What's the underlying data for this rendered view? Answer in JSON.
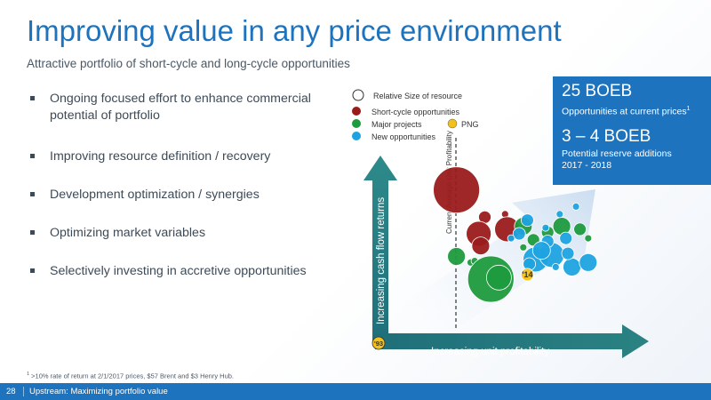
{
  "slide": {
    "title": "Improving value in any price environment",
    "subtitle": "Attractive portfolio of short-cycle and long-cycle opportunities",
    "bullets": [
      "Ongoing focused effort to enhance commercial potential of portfolio",
      "Improving resource definition / recovery",
      "Development optimization / synergies",
      "Optimizing market variables",
      "Selectively investing in accretive opportunities"
    ],
    "callout": {
      "value1": "25 BOEB",
      "label1": "Opportunities at current prices",
      "label1_sup": "1",
      "value2": "3 – 4 BOEB",
      "label2_line1": "Potential reserve additions",
      "label2_line2": "2017 - 2018"
    },
    "footnote_sup": "1",
    "footnote": " >10% rate of return at 2/1/2017 prices, $57 Brent and $3 Henry Hub.",
    "page_number": "28",
    "footer_text": "Upstream: Maximizing portfolio value"
  },
  "chart_data": {
    "type": "scatter",
    "xlabel": "Increasing unit profitability",
    "ylabel": "Increasing cash flow returns",
    "annotation_line": "Current Average Unit Profitability",
    "origin_label": "'93",
    "highlight_label": "'14",
    "legend": {
      "size_title": "Relative Size of resource",
      "items": [
        {
          "name": "Short-cycle opportunities",
          "color": "#9b1b1b"
        },
        {
          "name": "Major projects",
          "color": "#1e9b3e"
        },
        {
          "name": "New opportunities",
          "color": "#1ea3e0"
        },
        {
          "name": "PNG",
          "color": "#f3c21a"
        }
      ]
    },
    "series": [
      {
        "name": "Short-cycle opportunities",
        "color": "#9b1b1b",
        "points": [
          [
            0.27,
            0.89,
            5
          ],
          [
            0.41,
            0.71,
            2
          ],
          [
            0.51,
            0.73,
            1
          ],
          [
            0.38,
            0.6,
            4
          ],
          [
            0.39,
            0.52,
            3
          ],
          [
            0.52,
            0.63,
            4
          ]
        ]
      },
      {
        "name": "Major projects",
        "color": "#1e9b3e",
        "points": [
          [
            0.27,
            0.45,
            3
          ],
          [
            0.34,
            0.41,
            1
          ],
          [
            0.36,
            0.42,
            1
          ],
          [
            0.44,
            0.3,
            5
          ],
          [
            0.48,
            0.31,
            4
          ],
          [
            0.6,
            0.65,
            3
          ],
          [
            0.79,
            0.65,
            3
          ],
          [
            0.72,
            0.61,
            2
          ],
          [
            0.65,
            0.56,
            2
          ],
          [
            0.88,
            0.63,
            2
          ],
          [
            0.92,
            0.57,
            1
          ],
          [
            0.6,
            0.51,
            1
          ]
        ]
      },
      {
        "name": "New opportunities",
        "color": "#1ea3e0",
        "points": [
          [
            0.66,
            0.43,
            4
          ],
          [
            0.74,
            0.46,
            4
          ],
          [
            0.72,
            0.55,
            2
          ],
          [
            0.69,
            0.49,
            3
          ],
          [
            0.63,
            0.4,
            2
          ],
          [
            0.76,
            0.38,
            1
          ],
          [
            0.84,
            0.38,
            3
          ],
          [
            0.82,
            0.47,
            2
          ],
          [
            0.81,
            0.57,
            2
          ],
          [
            0.92,
            0.41,
            3
          ],
          [
            0.58,
            0.6,
            2
          ],
          [
            0.54,
            0.57,
            1
          ],
          [
            0.71,
            0.64,
            1
          ],
          [
            0.78,
            0.73,
            1
          ],
          [
            0.86,
            0.78,
            1
          ],
          [
            0.62,
            0.69,
            2
          ]
        ]
      },
      {
        "name": "PNG",
        "color": "#f3c21a",
        "points": [
          [
            0.62,
            0.33,
            2
          ]
        ]
      }
    ]
  }
}
